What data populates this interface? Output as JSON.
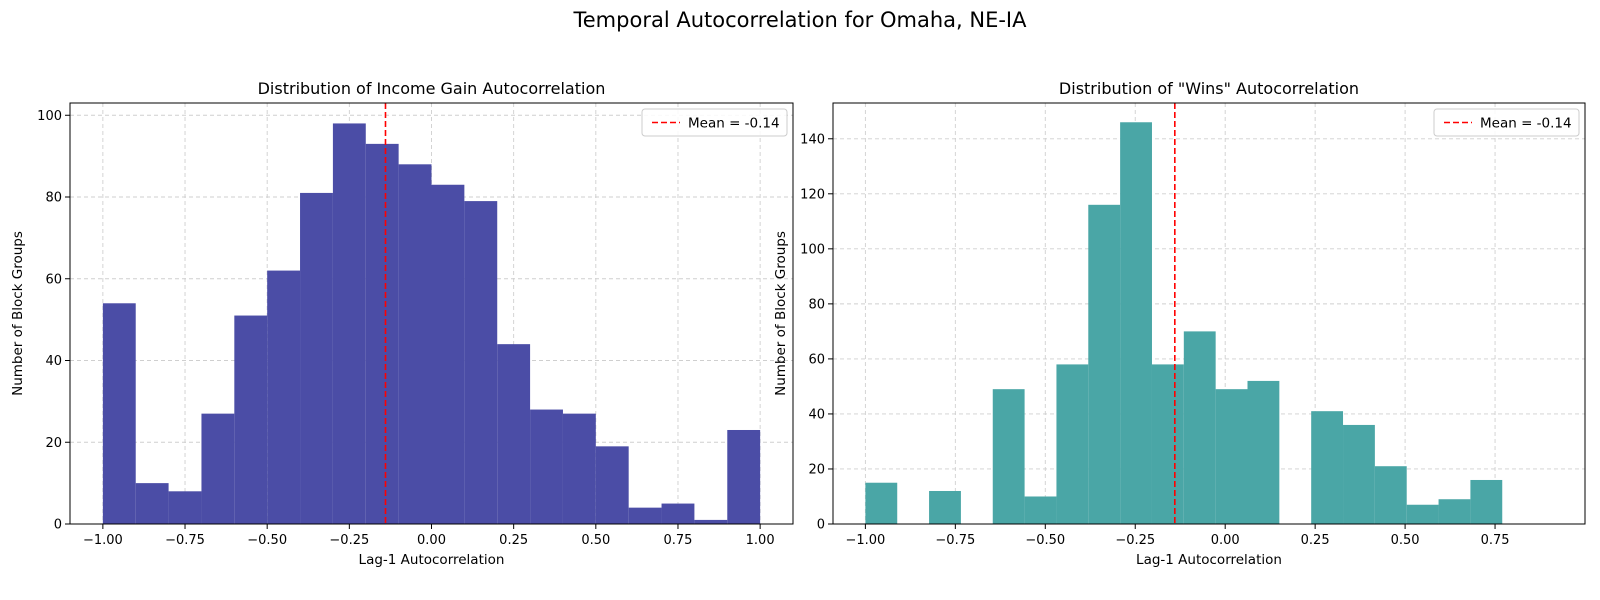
{
  "suptitle": "Temporal Autocorrelation for Omaha, NE-IA",
  "chart_data": [
    {
      "type": "bar",
      "title": "Distribution of Income Gain Autocorrelation",
      "xlabel": "Lag-1 Autocorrelation",
      "ylabel": "Number of Block Groups",
      "bar_color": "#4b4da6",
      "bin_edges": [
        -1.0,
        -0.9,
        -0.8,
        -0.7,
        -0.6,
        -0.5,
        -0.4,
        -0.3,
        -0.2,
        -0.1,
        0.0,
        0.1,
        0.2,
        0.3,
        0.4,
        0.5,
        0.6,
        0.7,
        0.8,
        0.9,
        1.0
      ],
      "values": [
        54,
        10,
        8,
        27,
        51,
        62,
        81,
        98,
        93,
        88,
        83,
        79,
        44,
        28,
        27,
        19,
        4,
        5,
        1,
        23
      ],
      "xlim": [
        -1.1,
        1.1
      ],
      "ylim": [
        0,
        103
      ],
      "xticks": [
        -1.0,
        -0.75,
        -0.5,
        -0.25,
        0.0,
        0.25,
        0.5,
        0.75,
        1.0
      ],
      "xtick_labels": [
        "−1.00",
        "−0.75",
        "−0.50",
        "−0.25",
        "0.00",
        "0.25",
        "0.50",
        "0.75",
        "1.00"
      ],
      "yticks": [
        0,
        20,
        40,
        60,
        80,
        100
      ],
      "ytick_labels": [
        "0",
        "20",
        "40",
        "60",
        "80",
        "100"
      ],
      "mean": -0.14,
      "mean_label": "Mean = -0.14",
      "mean_color": "#ff0000",
      "legend_position": "top-right",
      "grid": true
    },
    {
      "type": "bar",
      "title": "Distribution of \"Wins\" Autocorrelation",
      "xlabel": "Lag-1 Autocorrelation",
      "ylabel": "Number of Block Groups",
      "bar_color": "#4aa6a6",
      "bin_edges": [
        -1.0,
        -0.9,
        -0.8,
        -0.7,
        -0.6,
        -0.5,
        -0.4,
        -0.3,
        -0.2,
        -0.1,
        0.0,
        0.1,
        0.2,
        0.3,
        0.4,
        0.5,
        0.6,
        0.7,
        0.8,
        0.9,
        1.0
      ],
      "values": [
        15,
        0,
        12,
        0,
        49,
        10,
        58,
        116,
        146,
        58,
        70,
        49,
        52,
        0,
        41,
        36,
        21,
        7,
        9,
        16
      ],
      "xlim": [
        -1.09,
        1.0
      ],
      "ylim": [
        0,
        153
      ],
      "bin_scale": 0.885,
      "xticks": [
        -1.0,
        -0.75,
        -0.5,
        -0.25,
        0.0,
        0.25,
        0.5,
        0.75
      ],
      "xtick_labels": [
        "−1.00",
        "−0.75",
        "−0.50",
        "−0.25",
        "0.00",
        "0.25",
        "0.50",
        "0.75"
      ],
      "yticks": [
        0,
        20,
        40,
        60,
        80,
        100,
        120,
        140
      ],
      "ytick_labels": [
        "0",
        "20",
        "40",
        "60",
        "80",
        "100",
        "120",
        "140"
      ],
      "mean": -0.14,
      "mean_label": "Mean = -0.14",
      "mean_color": "#ff0000",
      "legend_position": "top-right",
      "grid": true
    }
  ]
}
